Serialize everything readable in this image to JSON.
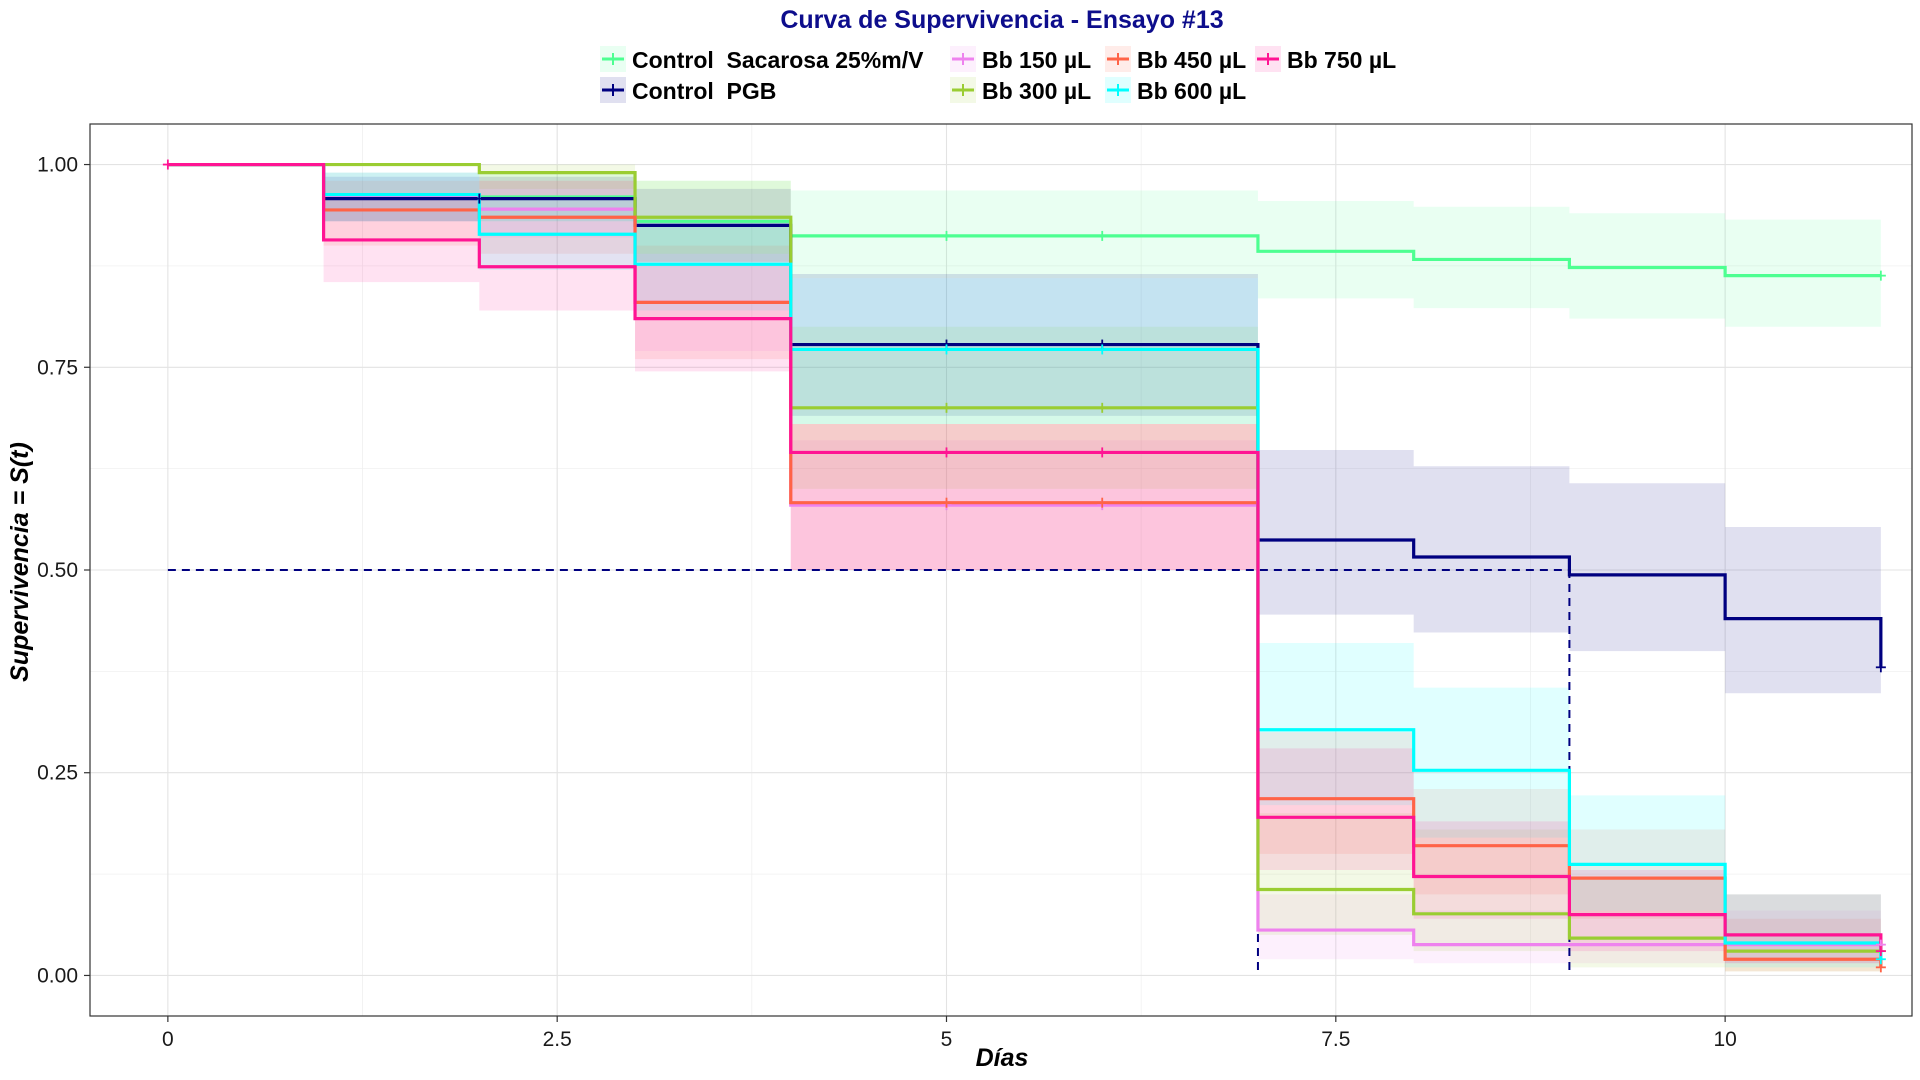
{
  "chart_data": {
    "type": "line",
    "subtype": "kaplan-meier step survival curves with confidence bands",
    "title": "Curva de Supervivencia - Ensayo #13",
    "xlabel": "Días",
    "ylabel": "Supervivencia = S(t)",
    "xlim": [
      -0.5,
      11.2
    ],
    "ylim": [
      -0.05,
      1.05
    ],
    "x_ticks": [
      0,
      2.5,
      5,
      7.5,
      10
    ],
    "x_tick_labels": [
      "0",
      "2.5",
      "5",
      "7.5",
      "10"
    ],
    "y_ticks": [
      0,
      0.25,
      0.5,
      0.75,
      1.0
    ],
    "y_tick_labels": [
      "0.00",
      "0.25",
      "0.50",
      "0.75",
      "1.00"
    ],
    "grid": true,
    "legend_position": "top",
    "median_lines": [
      {
        "series": "Control  PGB",
        "color": "#000080",
        "x_start": 0,
        "x_end": 9,
        "y": 0.5,
        "drops_at": [
          7,
          9
        ]
      }
    ],
    "series": [
      {
        "name": "Control  Sacarosa 25%m/V",
        "color": "#4dff91",
        "x": [
          0,
          1,
          2,
          3,
          4,
          5,
          6,
          7,
          8,
          9,
          10,
          11
        ],
        "y": [
          1.0,
          0.96,
          0.96,
          0.93,
          0.912,
          0.912,
          0.912,
          0.893,
          0.883,
          0.873,
          0.863,
          0.863
        ],
        "lower": [
          1.0,
          0.93,
          0.93,
          0.88,
          0.86,
          0.86,
          0.86,
          0.835,
          0.823,
          0.81,
          0.8,
          0.8
        ],
        "upper": [
          1.0,
          0.99,
          0.99,
          0.98,
          0.968,
          0.968,
          0.968,
          0.955,
          0.948,
          0.94,
          0.932,
          0.932
        ],
        "censored_x": [
          5,
          6,
          11
        ]
      },
      {
        "name": "Control  PGB",
        "color": "#000080",
        "x": [
          0,
          1,
          2,
          3,
          4,
          5,
          6,
          7,
          8,
          9,
          10,
          11
        ],
        "y": [
          1.0,
          0.958,
          0.958,
          0.925,
          0.778,
          0.778,
          0.778,
          0.537,
          0.516,
          0.494,
          0.44,
          0.38
        ],
        "lower": [
          1.0,
          0.93,
          0.93,
          0.88,
          0.69,
          0.69,
          0.69,
          0.445,
          0.423,
          0.4,
          0.348,
          0.348
        ],
        "upper": [
          1.0,
          0.985,
          0.985,
          0.97,
          0.865,
          0.865,
          0.865,
          0.648,
          0.628,
          0.607,
          0.553,
          0.553
        ],
        "censored_x": [
          2,
          5,
          6,
          11
        ]
      },
      {
        "name": "Bb 150 µL",
        "color": "#ee82ee",
        "x": [
          0,
          1,
          2,
          3,
          4,
          5,
          6,
          7,
          8,
          9,
          10,
          11
        ],
        "y": [
          1.0,
          0.962,
          0.945,
          0.83,
          0.58,
          0.58,
          0.58,
          0.056,
          0.038,
          0.038,
          0.038,
          0.038
        ],
        "lower": [
          1.0,
          0.93,
          0.91,
          0.77,
          0.5,
          0.5,
          0.5,
          0.02,
          0.015,
          0.015,
          0.015,
          0.015
        ],
        "upper": [
          1.0,
          0.99,
          0.98,
          0.89,
          0.66,
          0.66,
          0.66,
          0.1,
          0.08,
          0.08,
          0.08,
          0.08
        ],
        "censored_x": [
          5,
          6,
          11
        ]
      },
      {
        "name": "Bb 300 µL",
        "color": "#9acd32",
        "x": [
          0,
          1,
          2,
          3,
          4,
          5,
          6,
          7,
          8,
          9,
          10,
          11
        ],
        "y": [
          1.0,
          1.0,
          0.99,
          0.935,
          0.7,
          0.7,
          0.7,
          0.106,
          0.076,
          0.046,
          0.03,
          0.03
        ],
        "lower": [
          1.0,
          1.0,
          0.97,
          0.89,
          0.6,
          0.6,
          0.6,
          0.05,
          0.03,
          0.01,
          0.005,
          0.005
        ],
        "upper": [
          1.0,
          1.0,
          1.0,
          0.98,
          0.8,
          0.8,
          0.8,
          0.2,
          0.18,
          0.12,
          0.1,
          0.1
        ],
        "censored_x": [
          5,
          6,
          11
        ]
      },
      {
        "name": "Bb 450 µL",
        "color": "#ff6347",
        "x": [
          0,
          1,
          2,
          3,
          4,
          5,
          6,
          7,
          8,
          9,
          10,
          11
        ],
        "y": [
          1.0,
          0.944,
          0.935,
          0.83,
          0.583,
          0.583,
          0.583,
          0.218,
          0.16,
          0.12,
          0.02,
          0.01
        ],
        "lower": [
          1.0,
          0.9,
          0.89,
          0.76,
          0.5,
          0.5,
          0.5,
          0.15,
          0.1,
          0.07,
          0.005,
          0.005
        ],
        "upper": [
          1.0,
          0.98,
          0.98,
          0.9,
          0.68,
          0.68,
          0.68,
          0.3,
          0.23,
          0.18,
          0.07,
          0.07
        ],
        "censored_x": [
          5,
          6,
          11
        ]
      },
      {
        "name": "Bb 600 µL",
        "color": "#00ffff",
        "x": [
          0,
          1,
          2,
          3,
          4,
          5,
          6,
          7,
          8,
          9,
          10,
          11
        ],
        "y": [
          1.0,
          0.963,
          0.914,
          0.877,
          0.772,
          0.772,
          0.772,
          0.303,
          0.253,
          0.137,
          0.04,
          0.02
        ],
        "lower": [
          1.0,
          0.93,
          0.87,
          0.82,
          0.68,
          0.68,
          0.68,
          0.21,
          0.17,
          0.08,
          0.01,
          0.01
        ],
        "upper": [
          1.0,
          0.99,
          0.96,
          0.93,
          0.86,
          0.86,
          0.86,
          0.41,
          0.355,
          0.222,
          0.1,
          0.1
        ],
        "censored_x": [
          5,
          6,
          11
        ]
      },
      {
        "name": "Bb 750 µL",
        "color": "#ff1493",
        "x": [
          0,
          1,
          2,
          3,
          4,
          5,
          6,
          7,
          8,
          9,
          10,
          11
        ],
        "y": [
          1.0,
          0.907,
          0.874,
          0.81,
          0.645,
          0.645,
          0.645,
          0.195,
          0.122,
          0.075,
          0.05,
          0.03
        ],
        "lower": [
          1.0,
          0.855,
          0.82,
          0.745,
          0.5,
          0.5,
          0.5,
          0.13,
          0.07,
          0.03,
          0.015,
          0.015
        ],
        "upper": [
          1.0,
          0.96,
          0.93,
          0.875,
          0.68,
          0.68,
          0.68,
          0.28,
          0.19,
          0.13,
          0.1,
          0.1
        ],
        "censored_x": [
          0,
          5,
          6,
          11
        ]
      }
    ]
  }
}
